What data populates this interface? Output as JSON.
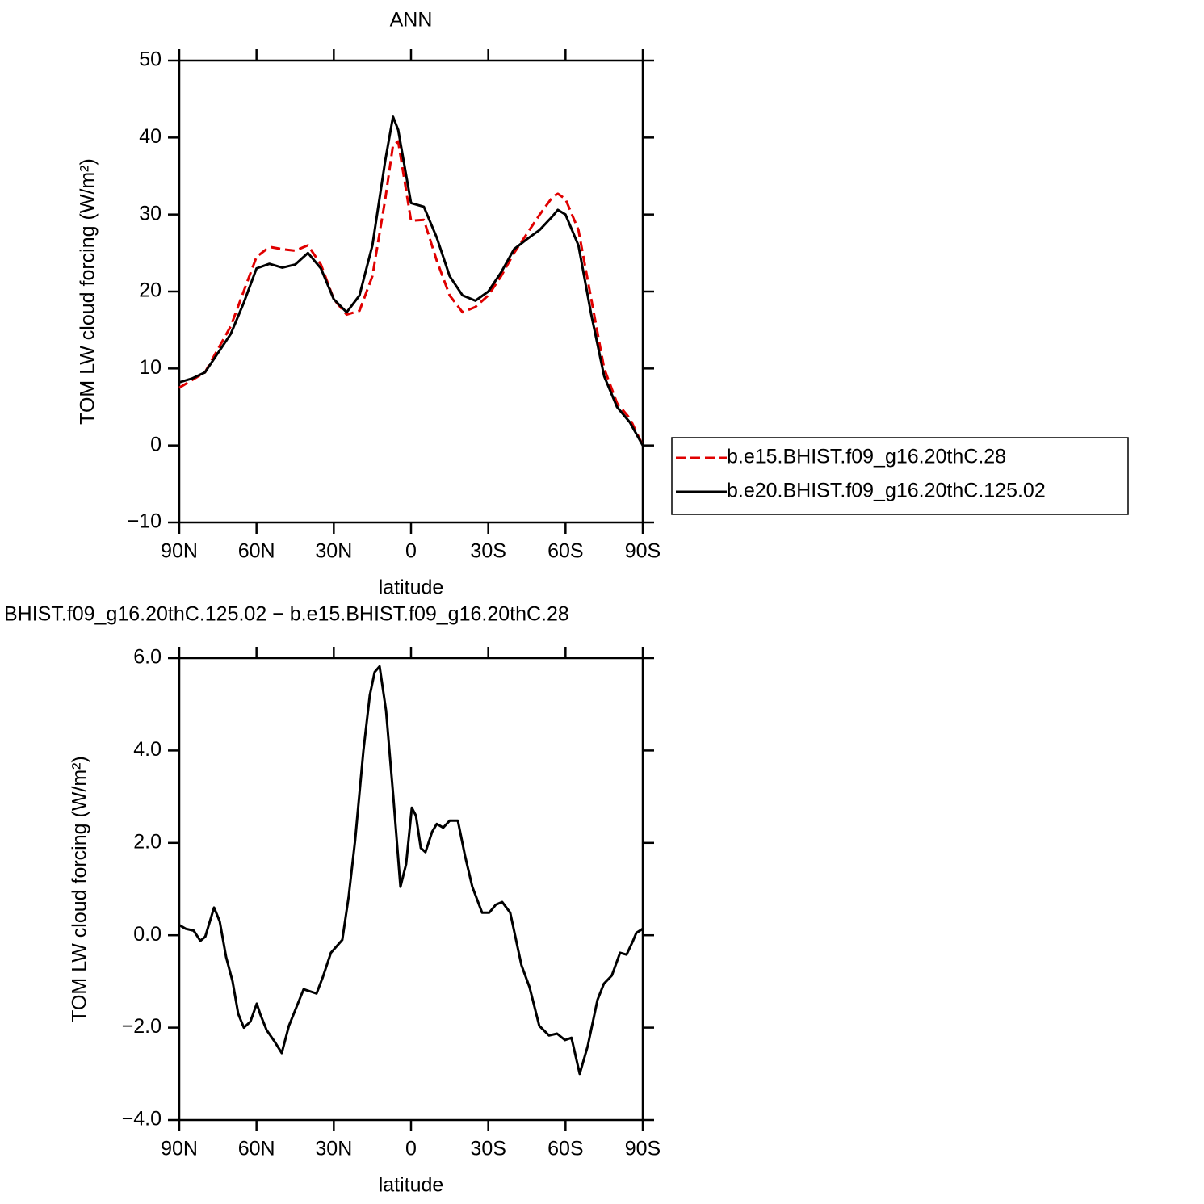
{
  "chart_data": [
    {
      "type": "line",
      "title": "ANN",
      "xlabel": "latitude",
      "ylabel": "TOM LW cloud forcing (W/m²)",
      "x": [
        90,
        85,
        80,
        75,
        70,
        65,
        60,
        55,
        50,
        45,
        40,
        35,
        30,
        25,
        20,
        15,
        10,
        7,
        5,
        0,
        -5,
        -10,
        -15,
        -20,
        -25,
        -30,
        -35,
        -40,
        -45,
        -50,
        -55,
        -57,
        -60,
        -65,
        -70,
        -75,
        -80,
        -85,
        -90
      ],
      "series": [
        {
          "name": "b.e15.BHIST.f09_g16.20thC.28",
          "color": "#e00000",
          "dash": true,
          "values": [
            7.5,
            8.5,
            9.5,
            12.5,
            15.5,
            20,
            24.5,
            25.8,
            25.5,
            25.3,
            26,
            23.5,
            19,
            17,
            17.5,
            22,
            32,
            39,
            39.5,
            29.2,
            29.3,
            24,
            19.5,
            17.3,
            18,
            19.5,
            22,
            25,
            27.5,
            30,
            32.3,
            32.7,
            32,
            28,
            19,
            10,
            5.5,
            3.5,
            0
          ]
        },
        {
          "name": "b.e20.BHIST.f09_g16.20thC.125.02",
          "color": "#000000",
          "dash": false,
          "values": [
            8.2,
            8.7,
            9.5,
            12,
            14.5,
            18.5,
            23,
            23.6,
            23.1,
            23.5,
            25,
            23,
            19,
            17.3,
            19.5,
            26,
            37,
            42.7,
            41,
            31.5,
            31,
            27,
            22,
            19.5,
            18.8,
            20,
            22.5,
            25.5,
            26.8,
            28,
            29.8,
            30.6,
            30,
            26,
            17,
            9,
            5,
            3,
            0
          ]
        }
      ],
      "xlim": [
        90,
        -90
      ],
      "xticks": [
        {
          "value": 90,
          "label": "90N"
        },
        {
          "value": 60,
          "label": "60N"
        },
        {
          "value": 30,
          "label": "30N"
        },
        0,
        {
          "value": -30,
          "label": "30S"
        },
        {
          "value": -60,
          "label": "60S"
        },
        {
          "value": -90,
          "label": "90S"
        }
      ],
      "ylim": [
        -10,
        50
      ],
      "yticks": [
        {
          "value": -10,
          "label": "−10"
        },
        0,
        10,
        20,
        30,
        40,
        50
      ],
      "legend": "right"
    },
    {
      "type": "line",
      "title": "BHIST.f09_g16.20thC.125.02 − b.e15.BHIST.f09_g16.20thC.28",
      "xlabel": "latitude",
      "ylabel": "TOM LW cloud forcing (W/m²)",
      "x": [
        90,
        87.5,
        84.4,
        81.8,
        79.9,
        76.5,
        74.3,
        71.8,
        69.3,
        67.1,
        64.9,
        62.4,
        59.9,
        58.6,
        56.1,
        53.0,
        50.2,
        47.4,
        43.6,
        41.7,
        38.9,
        36.7,
        34.2,
        31.1,
        26.7,
        24.2,
        21.7,
        18.5,
        16.0,
        14.1,
        12.2,
        9.7,
        6.9,
        4.1,
        1.9,
        -0.3,
        -1.9,
        -3.8,
        -5.6,
        -8.2,
        -10.0,
        -12.5,
        -15.0,
        -18.2,
        -21.0,
        -23.8,
        -27.6,
        -30.4,
        -32.9,
        -35.4,
        -38.5,
        -42.9,
        -46.0,
        -49.8,
        -53.6,
        -56.7,
        -59.8,
        -62.3,
        -65.5,
        -68.6,
        -72.4,
        -74.9,
        -78.0,
        -81.2,
        -83.7,
        -86.2,
        -87.5,
        -90
      ],
      "series": [
        {
          "name": "difference",
          "color": "#000000",
          "dash": false,
          "values": [
            0.22,
            0.14,
            0.1,
            -0.12,
            -0.03,
            0.6,
            0.3,
            -0.47,
            -1.0,
            -1.7,
            -2.0,
            -1.87,
            -1.48,
            -1.7,
            -2.05,
            -2.3,
            -2.55,
            -1.96,
            -1.43,
            -1.17,
            -1.22,
            -1.26,
            -0.9,
            -0.38,
            -0.1,
            0.84,
            2.06,
            3.99,
            5.2,
            5.7,
            5.82,
            4.86,
            3.02,
            1.05,
            1.54,
            2.76,
            2.59,
            1.89,
            1.8,
            2.24,
            2.41,
            2.33,
            2.48,
            2.48,
            1.71,
            1.05,
            0.49,
            0.49,
            0.66,
            0.72,
            0.49,
            -0.65,
            -1.12,
            -1.96,
            -2.17,
            -2.13,
            -2.27,
            -2.22,
            -3.0,
            -2.4,
            -1.4,
            -1.05,
            -0.87,
            -0.38,
            -0.42,
            -0.12,
            0.05,
            0.14
          ]
        }
      ],
      "xlim": [
        90,
        -90
      ],
      "xticks": [
        {
          "value": 90,
          "label": "90N"
        },
        {
          "value": 60,
          "label": "60N"
        },
        {
          "value": 30,
          "label": "30N"
        },
        0,
        {
          "value": -30,
          "label": "30S"
        },
        {
          "value": -60,
          "label": "60S"
        },
        {
          "value": -90,
          "label": "90S"
        }
      ],
      "ylim": [
        -4,
        6
      ],
      "yticks": [
        {
          "value": -4,
          "label": "−4.0"
        },
        {
          "value": -2,
          "label": "−2.0"
        },
        {
          "value": 0,
          "label": "0.0"
        },
        {
          "value": 2,
          "label": "2.0"
        },
        {
          "value": 4,
          "label": "4.0"
        },
        {
          "value": 6,
          "label": "6.0"
        }
      ]
    }
  ]
}
